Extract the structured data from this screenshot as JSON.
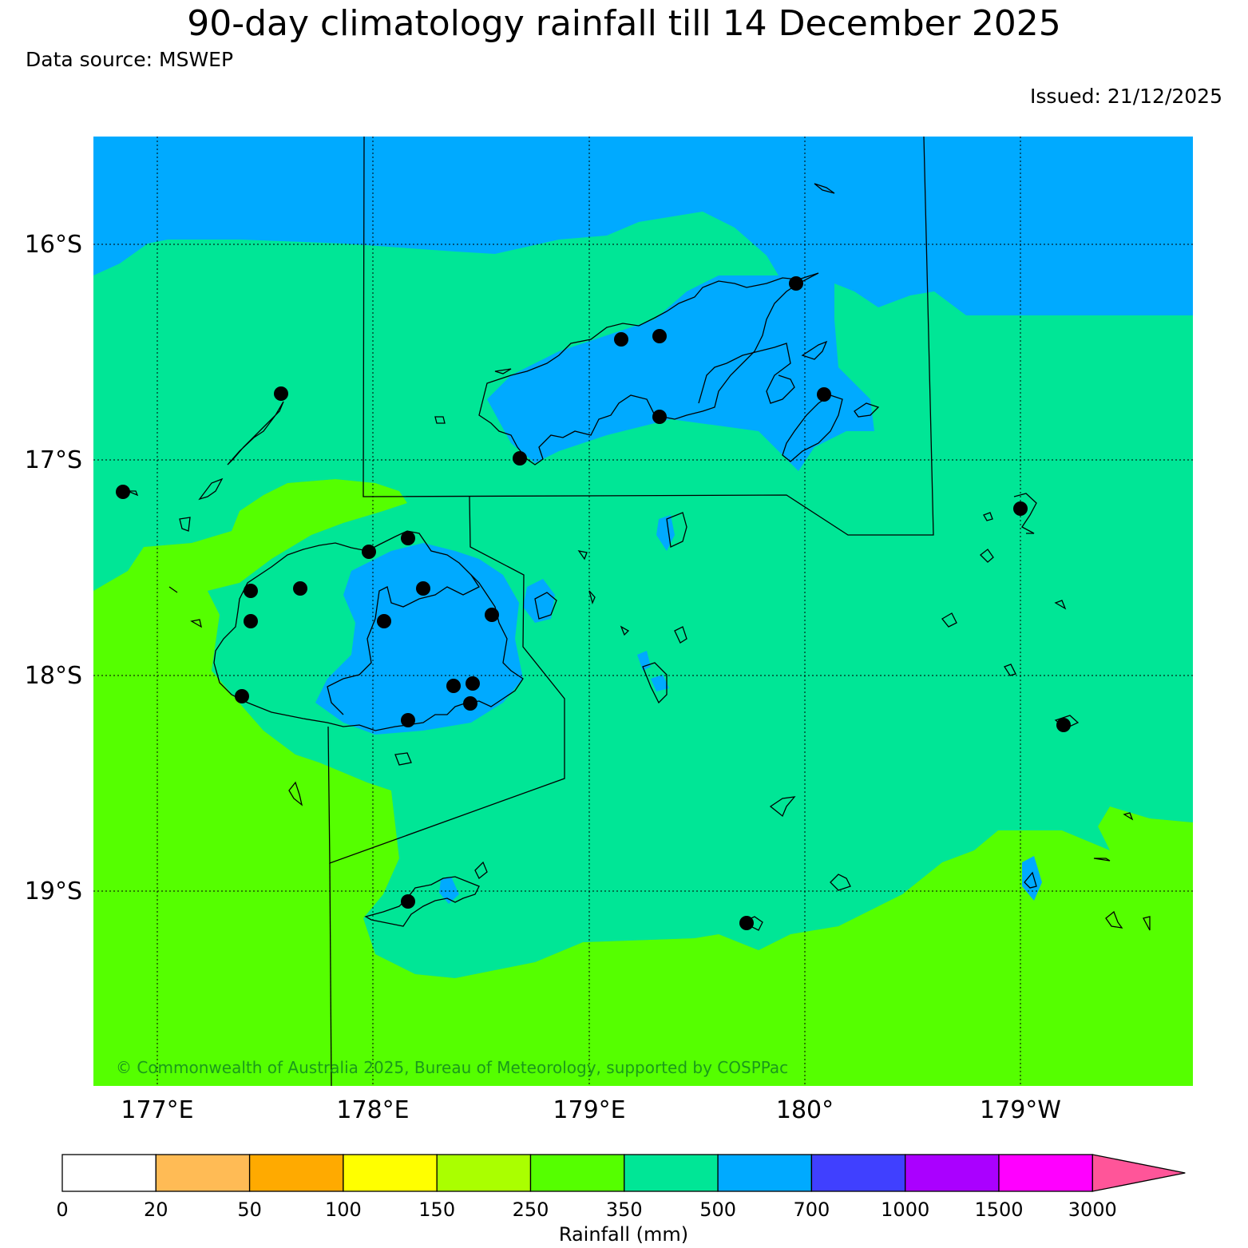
{
  "title": "90-day climatology rainfall till 14 December 2025",
  "source": "Data source: MSWEP",
  "issued": "Issued: 21/12/2025",
  "copyright": "© Commonwealth of Australia 2025, Bureau of Meteorology, supported by COSPPac",
  "lon_ticks": [
    "177°E",
    "178°E",
    "179°E",
    "180°",
    "179°W"
  ],
  "lat_ticks": [
    "16°S",
    "17°S",
    "18°S",
    "19°S"
  ],
  "colorbar": {
    "label": "Rainfall (mm)",
    "ticks": [
      "0",
      "20",
      "50",
      "100",
      "150",
      "250",
      "350",
      "500",
      "700",
      "1000",
      "1500",
      "3000"
    ],
    "colors": [
      "#ffffff",
      "#ffbb55",
      "#ffaa00",
      "#ffff00",
      "#aaff00",
      "#55ff00",
      "#00e696",
      "#00aaff",
      "#4040ff",
      "#aa00ff",
      "#ff00ff",
      "#ff5599"
    ]
  },
  "rain_classes": {
    "shelf": "500-700",
    "main": "350-500",
    "south": "250-350"
  }
}
